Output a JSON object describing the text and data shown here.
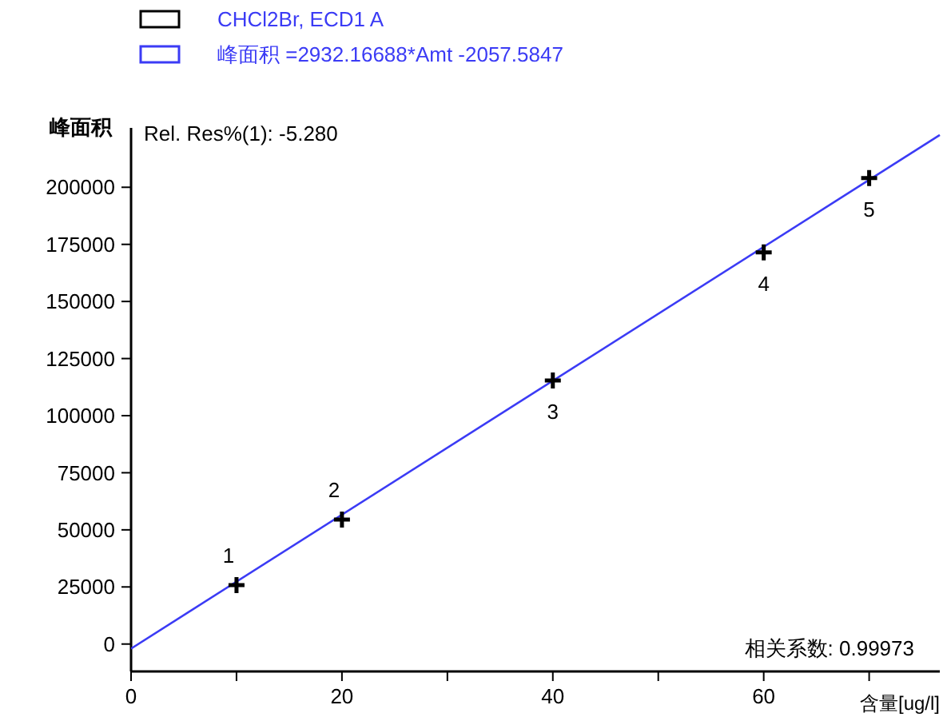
{
  "chart_data": {
    "type": "scatter",
    "xlabel": "含量[ug/l]",
    "ylabel": "峰面积",
    "xlim": [
      0,
      76.7
    ],
    "xticks": [
      0,
      {
        "value": 10,
        "label": null
      },
      20,
      {
        "value": 30,
        "label": null
      },
      40,
      {
        "value": 50,
        "label": null
      },
      60,
      {
        "value": 70,
        "label": null
      }
    ],
    "ylim": [
      -12000,
      226000
    ],
    "yticks": [
      0,
      25000,
      50000,
      75000,
      100000,
      125000,
      150000,
      175000,
      200000
    ],
    "grid": false,
    "legend": "top left",
    "series": [
      {
        "name": "CHCl2Br, ECD1 A",
        "color": "#000000",
        "marker": "cross",
        "x": [
          10,
          20,
          40,
          60,
          70
        ],
        "values": [
          25800,
          54500,
          115400,
          171500,
          204000
        ]
      },
      {
        "name": "峰面积 =2932.16688*Amt -2057.5847",
        "type": "line",
        "color": "#3b3bf5",
        "line_style": "solid",
        "marker": "none",
        "x": [
          0,
          76.7
        ],
        "values": [
          -2000,
          222900
        ]
      }
    ],
    "annotations": [
      {
        "text": "1",
        "x": 10,
        "y": 25800
      },
      {
        "text": "2",
        "x": 20,
        "y": 54500
      },
      {
        "text": "3",
        "x": 40,
        "y": 115400
      },
      {
        "text": "4",
        "x": 60,
        "y": 171500
      },
      {
        "text": "5",
        "x": 70,
        "y": 204000
      },
      "Rel. Res%(1): -5.280",
      "相关系数: 0.99973"
    ]
  }
}
